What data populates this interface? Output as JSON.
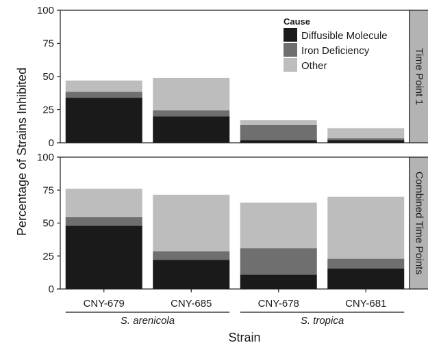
{
  "colors": {
    "diffusible": "#1a1a1a",
    "iron": "#6f6f6f",
    "other": "#bdbdbd",
    "strip": "#b3b3b3"
  },
  "chart_data": {
    "type": "bar",
    "stacked": true,
    "categories": [
      "CNY-679",
      "CNY-685",
      "CNY-678",
      "CNY-681"
    ],
    "groups": [
      {
        "label": "S. arenicola",
        "categories": [
          "CNY-679",
          "CNY-685"
        ]
      },
      {
        "label": "S. tropica",
        "categories": [
          "CNY-678",
          "CNY-681"
        ]
      }
    ],
    "xlabel": "Strain",
    "ylabel": "Percentage of Strains Inhibited",
    "ylim": [
      0,
      100
    ],
    "yticks": [
      0,
      25,
      50,
      75,
      100
    ],
    "legend": {
      "title": "Cause",
      "placement": "top-right",
      "entries": [
        "Diffusible Molecule",
        "Iron Deficiency",
        "Other"
      ]
    },
    "panels": [
      {
        "strip_label": "Time Point 1",
        "series": [
          {
            "name": "Diffusible Molecule",
            "values": [
              34,
              20,
              2,
              2
            ]
          },
          {
            "name": "Iron Deficiency",
            "values": [
              4.5,
              4.5,
              11.5,
              1.5
            ]
          },
          {
            "name": "Other",
            "values": [
              8.5,
              24.5,
              3.5,
              7.5
            ]
          }
        ]
      },
      {
        "strip_label": "Combined Time Points",
        "series": [
          {
            "name": "Diffusible Molecule",
            "values": [
              48,
              22,
              11,
              15.5
            ]
          },
          {
            "name": "Iron Deficiency",
            "values": [
              6.5,
              6.5,
              20,
              7.5
            ]
          },
          {
            "name": "Other",
            "values": [
              21.5,
              43,
              34.5,
              47
            ]
          }
        ]
      }
    ]
  }
}
